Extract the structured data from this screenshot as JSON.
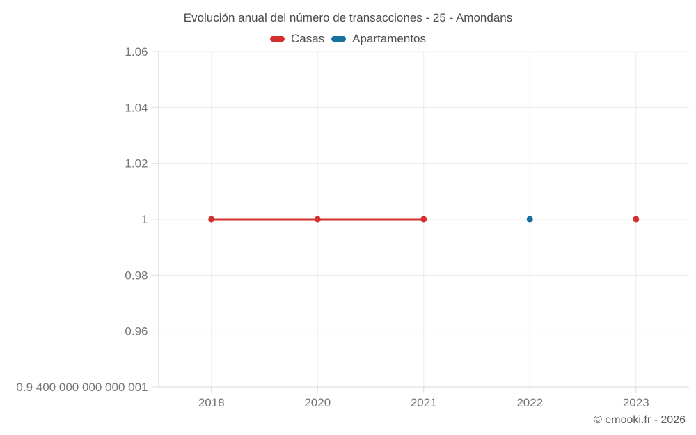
{
  "chart_data": {
    "type": "line",
    "title": "Evolución anual del número de transacciones - 25 - Amondans",
    "categories": [
      "2018",
      "2020",
      "2021",
      "2022",
      "2023"
    ],
    "series": [
      {
        "name": "Casas",
        "color": "#d32f2f",
        "values": [
          1,
          1,
          1,
          null,
          1
        ]
      },
      {
        "name": "Apartamentos",
        "color": "#17709f",
        "values": [
          null,
          null,
          null,
          1,
          null
        ]
      }
    ],
    "y_axis": {
      "min": 0.94,
      "max": 1.06,
      "ticks": [
        {
          "value": 1.06,
          "label": "1.06"
        },
        {
          "value": 1.04,
          "label": "1.04"
        },
        {
          "value": 1.02,
          "label": "1.02"
        },
        {
          "value": 1,
          "label": "1"
        },
        {
          "value": 0.98,
          "label": "0.98"
        },
        {
          "value": 0.96,
          "label": "0.96"
        },
        {
          "value": 0.94,
          "label": "0.9 400 000 000 000 001"
        }
      ]
    },
    "grid": true,
    "legend_position": "top",
    "attribution": "© emooki.fr - 2026"
  }
}
